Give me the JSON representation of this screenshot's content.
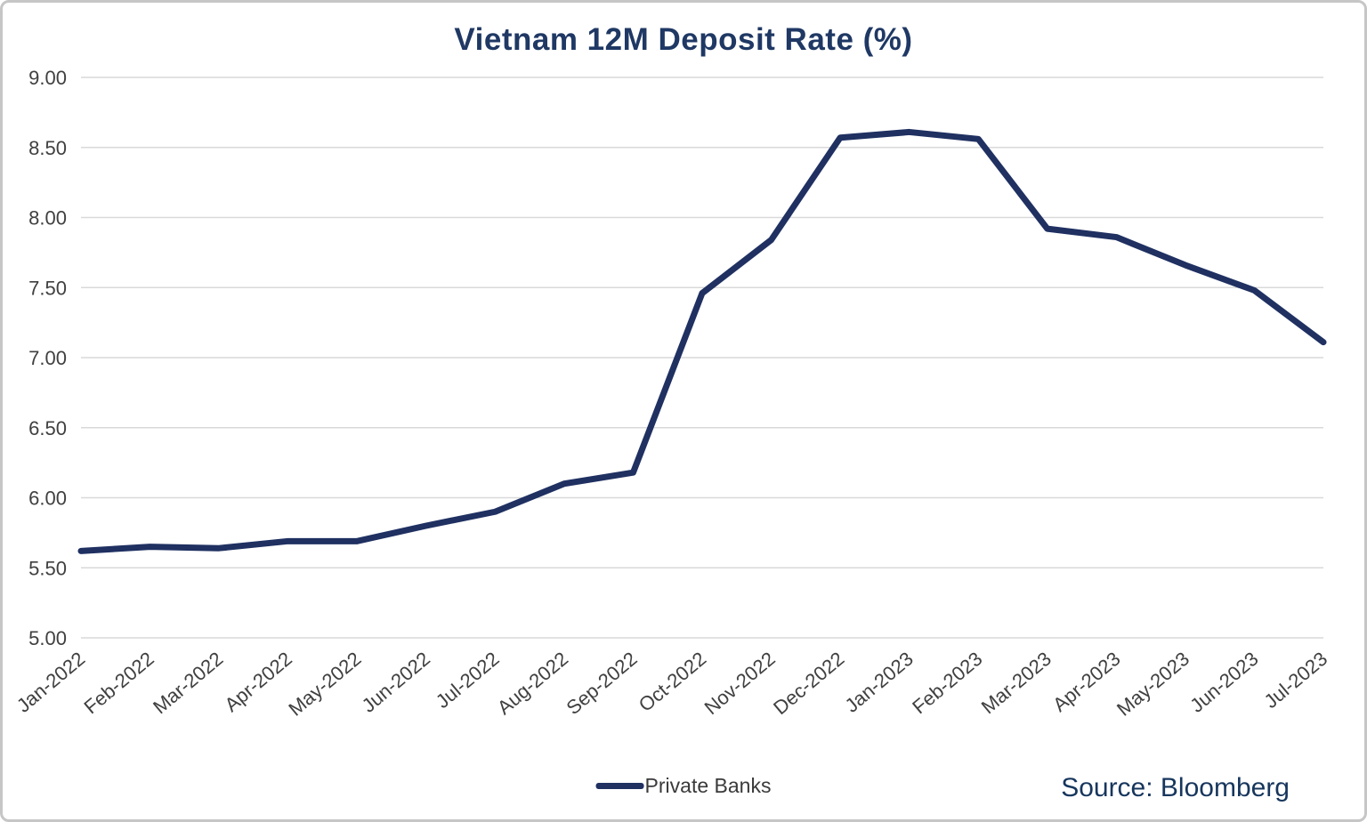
{
  "title": "Vietnam 12M Deposit Rate (%)",
  "legend": {
    "label": "Private Banks"
  },
  "source_text": "Source: Bloomberg",
  "colors": {
    "title": "#1F3864",
    "line": "#1F3061",
    "grid": "#D9D9D9",
    "axis_text": "#404040",
    "source_text": "#17365D"
  },
  "chart_data": {
    "type": "line",
    "title": "Vietnam 12M Deposit Rate (%)",
    "categories": [
      "Jan-2022",
      "Feb-2022",
      "Mar-2022",
      "Apr-2022",
      "May-2022",
      "Jun-2022",
      "Jul-2022",
      "Aug-2022",
      "Sep-2022",
      "Oct-2022",
      "Nov-2022",
      "Dec-2022",
      "Jan-2023",
      "Feb-2023",
      "Mar-2023",
      "Apr-2023",
      "May-2023",
      "Jun-2023",
      "Jul-2023"
    ],
    "series": [
      {
        "name": "Private Banks",
        "values": [
          5.62,
          5.65,
          5.64,
          5.69,
          5.69,
          5.8,
          5.9,
          6.1,
          6.18,
          7.46,
          7.84,
          8.57,
          8.61,
          8.56,
          7.92,
          7.86,
          7.66,
          7.48,
          7.11
        ]
      }
    ],
    "xlabel": "",
    "ylabel": "",
    "ylim": [
      5.0,
      9.0
    ],
    "ytick_step": 0.5,
    "grid": true,
    "legend_position": "bottom"
  }
}
